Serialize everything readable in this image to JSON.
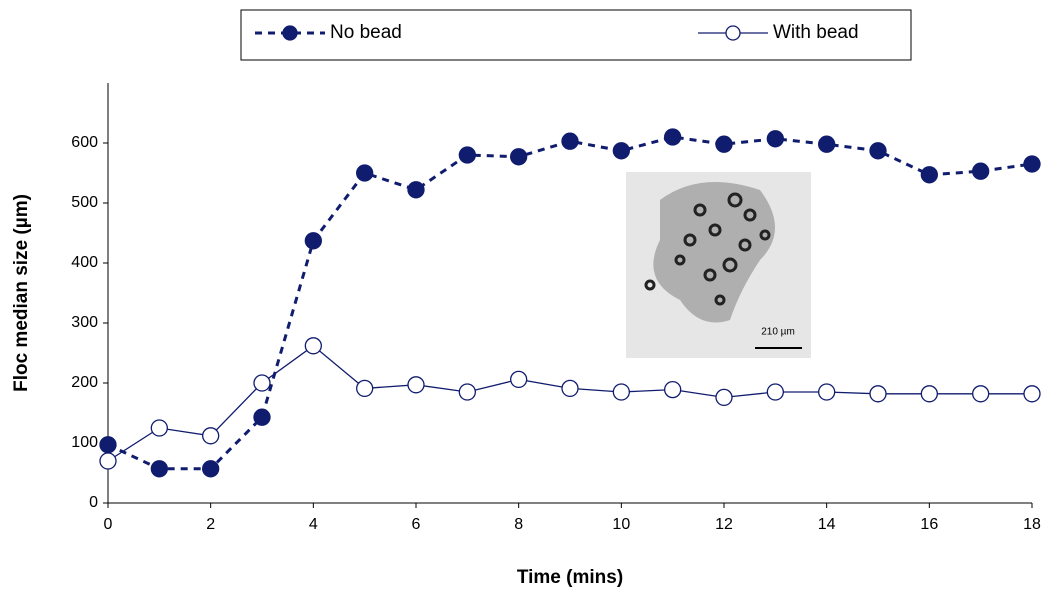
{
  "chart_data": {
    "type": "line",
    "x_label": "Time (mins)",
    "y_label": "Floc median size (µm)",
    "x": [
      0,
      1,
      2,
      3,
      4,
      5,
      6,
      7,
      8,
      9,
      10,
      11,
      12,
      13,
      14,
      15,
      16,
      17,
      18
    ],
    "series": [
      {
        "name": "No bead",
        "color": "#101c6e",
        "style": "dashed-filled",
        "values": [
          97,
          57,
          57,
          143,
          437,
          550,
          522,
          580,
          577,
          603,
          587,
          610,
          598,
          607,
          598,
          587,
          547,
          553,
          565
        ]
      },
      {
        "name": "With bead",
        "color": "#101c6e",
        "style": "solid-open",
        "values": [
          70,
          125,
          112,
          200,
          262,
          191,
          197,
          185,
          206,
          191,
          185,
          189,
          176,
          185,
          185,
          182,
          182,
          182,
          182
        ]
      }
    ],
    "xlim": [
      0,
      18
    ],
    "xticks": [
      0,
      2,
      4,
      6,
      8,
      10,
      12,
      14,
      16,
      18
    ],
    "ylim": [
      0,
      700
    ],
    "yticks": [
      0,
      100,
      200,
      300,
      400,
      500,
      600
    ],
    "inset_label": "210 µm"
  }
}
